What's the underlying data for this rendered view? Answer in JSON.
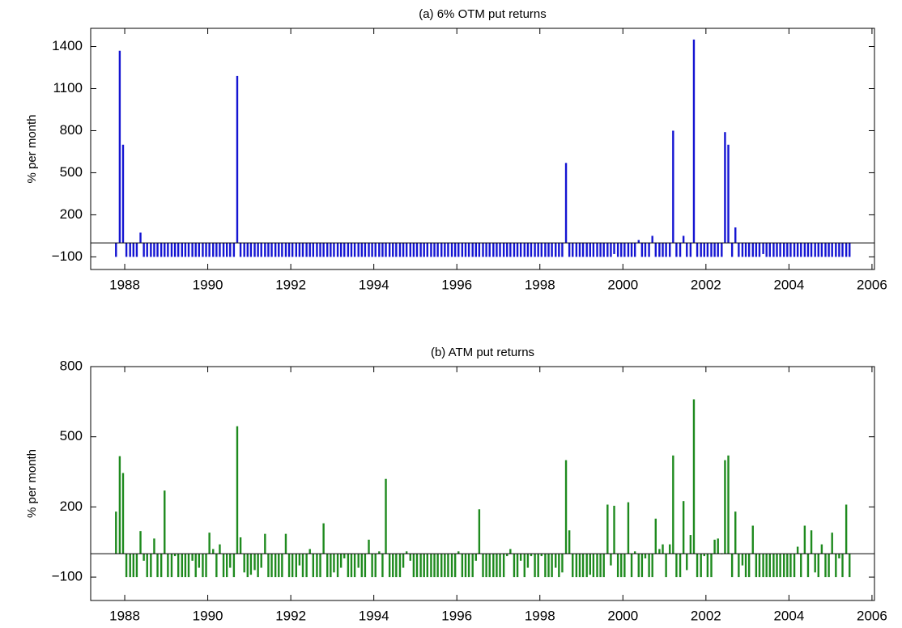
{
  "chart_data": [
    {
      "type": "bar",
      "title": "(a) 6% OTM put returns",
      "y_label": "% per month",
      "color": "#1414d2",
      "x": [
        1987.79,
        1987.88,
        1987.96,
        1988.04,
        1988.13,
        1988.21,
        1988.29,
        1988.38,
        1988.46,
        1988.54,
        1988.63,
        1988.71,
        1988.79,
        1988.88,
        1988.96,
        1989.04,
        1989.13,
        1989.21,
        1989.29,
        1989.38,
        1989.46,
        1989.54,
        1989.63,
        1989.71,
        1989.79,
        1989.88,
        1989.96,
        1990.04,
        1990.13,
        1990.21,
        1990.29,
        1990.38,
        1990.46,
        1990.54,
        1990.63,
        1990.71,
        1990.79,
        1990.88,
        1990.96,
        1991.04,
        1991.13,
        1991.21,
        1991.29,
        1991.38,
        1991.46,
        1991.54,
        1991.63,
        1991.71,
        1991.79,
        1991.88,
        1991.96,
        1992.04,
        1992.13,
        1992.21,
        1992.29,
        1992.38,
        1992.46,
        1992.54,
        1992.63,
        1992.71,
        1992.79,
        1992.88,
        1992.96,
        1993.04,
        1993.13,
        1993.21,
        1993.29,
        1993.38,
        1993.46,
        1993.54,
        1993.63,
        1993.71,
        1993.79,
        1993.88,
        1993.96,
        1994.04,
        1994.13,
        1994.21,
        1994.29,
        1994.38,
        1994.46,
        1994.54,
        1994.63,
        1994.71,
        1994.79,
        1994.88,
        1994.96,
        1995.04,
        1995.13,
        1995.21,
        1995.29,
        1995.38,
        1995.46,
        1995.54,
        1995.63,
        1995.71,
        1995.79,
        1995.88,
        1995.96,
        1996.04,
        1996.13,
        1996.21,
        1996.29,
        1996.38,
        1996.46,
        1996.54,
        1996.63,
        1996.71,
        1996.79,
        1996.88,
        1996.96,
        1997.04,
        1997.13,
        1997.21,
        1997.29,
        1997.38,
        1997.46,
        1997.54,
        1997.63,
        1997.71,
        1997.79,
        1997.88,
        1997.96,
        1998.04,
        1998.13,
        1998.21,
        1998.29,
        1998.38,
        1998.46,
        1998.54,
        1998.63,
        1998.71,
        1998.79,
        1998.88,
        1998.96,
        1999.04,
        1999.13,
        1999.21,
        1999.29,
        1999.38,
        1999.46,
        1999.54,
        1999.63,
        1999.71,
        1999.79,
        1999.88,
        1999.96,
        2000.04,
        2000.13,
        2000.21,
        2000.29,
        2000.38,
        2000.46,
        2000.54,
        2000.63,
        2000.71,
        2000.79,
        2000.88,
        2000.96,
        2001.04,
        2001.13,
        2001.21,
        2001.29,
        2001.38,
        2001.46,
        2001.54,
        2001.63,
        2001.71,
        2001.79,
        2001.88,
        2001.96,
        2002.04,
        2002.13,
        2002.21,
        2002.29,
        2002.38,
        2002.46,
        2002.54,
        2002.63,
        2002.71,
        2002.79,
        2002.88,
        2002.96,
        2003.04,
        2003.13,
        2003.21,
        2003.29,
        2003.38,
        2003.46,
        2003.54,
        2003.63,
        2003.71,
        2003.79,
        2003.88,
        2003.96,
        2004.04,
        2004.13,
        2004.21,
        2004.29,
        2004.38,
        2004.46,
        2004.54,
        2004.63,
        2004.71,
        2004.79,
        2004.88,
        2004.96,
        2005.04,
        2005.13,
        2005.21,
        2005.29,
        2005.38,
        2005.46
      ],
      "values": [
        -100,
        1370,
        700,
        -100,
        -100,
        -100,
        -100,
        73,
        -100,
        -100,
        -100,
        -100,
        -100,
        -100,
        -100,
        -100,
        -100,
        -100,
        -100,
        -100,
        -100,
        -100,
        -100,
        -100,
        -100,
        -100,
        -100,
        -100,
        -100,
        -100,
        -100,
        -100,
        -100,
        -100,
        -100,
        1190,
        -100,
        -100,
        -100,
        -100,
        -100,
        -100,
        -100,
        -100,
        -100,
        -100,
        -100,
        -100,
        -100,
        -100,
        -100,
        -100,
        -100,
        -100,
        -100,
        -100,
        -100,
        -100,
        -100,
        -100,
        -100,
        -100,
        -100,
        -100,
        -100,
        -100,
        -100,
        -100,
        -100,
        -100,
        -100,
        -100,
        -100,
        -100,
        -100,
        -100,
        -100,
        -100,
        -100,
        -100,
        -100,
        -100,
        -100,
        -100,
        -100,
        -100,
        -100,
        -100,
        -100,
        -100,
        -100,
        -100,
        -100,
        -100,
        -100,
        -100,
        -100,
        -100,
        -100,
        -100,
        -100,
        -100,
        -100,
        -100,
        -100,
        -100,
        -100,
        -100,
        -100,
        -100,
        -100,
        -100,
        -100,
        -100,
        -100,
        -100,
        -100,
        -100,
        -100,
        -100,
        -100,
        -100,
        -100,
        -100,
        -100,
        -100,
        -100,
        -100,
        -100,
        -100,
        570,
        -100,
        -100,
        -100,
        -100,
        -100,
        -100,
        -100,
        -100,
        -100,
        -100,
        -100,
        -100,
        -100,
        -80,
        -100,
        -100,
        -100,
        -100,
        -100,
        -100,
        20,
        -100,
        -100,
        -100,
        50,
        -100,
        -100,
        -100,
        -100,
        -100,
        800,
        -100,
        -100,
        50,
        -100,
        -100,
        1450,
        -100,
        -100,
        -100,
        -100,
        -100,
        -100,
        -100,
        -100,
        790,
        700,
        -100,
        110,
        -100,
        -100,
        -100,
        -100,
        -100,
        -100,
        -100,
        -80,
        -100,
        -100,
        -100,
        -100,
        -100,
        -100,
        -100,
        -100,
        -100,
        -100,
        -100,
        -100,
        -100,
        -100,
        -100,
        -100,
        -100,
        -100,
        -100,
        -100,
        -100,
        -100,
        -100,
        -100,
        -100
      ],
      "xlim": [
        1987.18,
        2006.06
      ],
      "xticks": [
        1988,
        1990,
        1992,
        1994,
        1996,
        1998,
        2000,
        2002,
        2004,
        2006
      ],
      "ylim": [
        -190,
        1530
      ],
      "yticks": [
        {
          "value": -100,
          "label": "−100"
        },
        200,
        500,
        800,
        1100,
        1400
      ]
    },
    {
      "type": "bar",
      "title": "(b) ATM put returns",
      "y_label": "% per month",
      "color": "#1e8a1e",
      "x": [
        1987.79,
        1987.88,
        1987.96,
        1988.04,
        1988.13,
        1988.21,
        1988.29,
        1988.38,
        1988.46,
        1988.54,
        1988.63,
        1988.71,
        1988.79,
        1988.88,
        1988.96,
        1989.04,
        1989.13,
        1989.21,
        1989.29,
        1989.38,
        1989.46,
        1989.54,
        1989.63,
        1989.71,
        1989.79,
        1989.88,
        1989.96,
        1990.04,
        1990.13,
        1990.21,
        1990.29,
        1990.38,
        1990.46,
        1990.54,
        1990.63,
        1990.71,
        1990.79,
        1990.88,
        1990.96,
        1991.04,
        1991.13,
        1991.21,
        1991.29,
        1991.38,
        1991.46,
        1991.54,
        1991.63,
        1991.71,
        1991.79,
        1991.88,
        1991.96,
        1992.04,
        1992.13,
        1992.21,
        1992.29,
        1992.38,
        1992.46,
        1992.54,
        1992.63,
        1992.71,
        1992.79,
        1992.88,
        1992.96,
        1993.04,
        1993.13,
        1993.21,
        1993.29,
        1993.38,
        1993.46,
        1993.54,
        1993.63,
        1993.71,
        1993.79,
        1993.88,
        1993.96,
        1994.04,
        1994.13,
        1994.21,
        1994.29,
        1994.38,
        1994.46,
        1994.54,
        1994.63,
        1994.71,
        1994.79,
        1994.88,
        1994.96,
        1995.04,
        1995.13,
        1995.21,
        1995.29,
        1995.38,
        1995.46,
        1995.54,
        1995.63,
        1995.71,
        1995.79,
        1995.88,
        1995.96,
        1996.04,
        1996.13,
        1996.21,
        1996.29,
        1996.38,
        1996.46,
        1996.54,
        1996.63,
        1996.71,
        1996.79,
        1996.88,
        1996.96,
        1997.04,
        1997.13,
        1997.21,
        1997.29,
        1997.38,
        1997.46,
        1997.54,
        1997.63,
        1997.71,
        1997.79,
        1997.88,
        1997.96,
        1998.04,
        1998.13,
        1998.21,
        1998.29,
        1998.38,
        1998.46,
        1998.54,
        1998.63,
        1998.71,
        1998.79,
        1998.88,
        1998.96,
        1999.04,
        1999.13,
        1999.21,
        1999.29,
        1999.38,
        1999.46,
        1999.54,
        1999.63,
        1999.71,
        1999.79,
        1999.88,
        1999.96,
        2000.04,
        2000.13,
        2000.21,
        2000.29,
        2000.38,
        2000.46,
        2000.54,
        2000.63,
        2000.71,
        2000.79,
        2000.88,
        2000.96,
        2001.04,
        2001.13,
        2001.21,
        2001.29,
        2001.38,
        2001.46,
        2001.54,
        2001.63,
        2001.71,
        2001.79,
        2001.88,
        2001.96,
        2002.04,
        2002.13,
        2002.21,
        2002.29,
        2002.38,
        2002.46,
        2002.54,
        2002.63,
        2002.71,
        2002.79,
        2002.88,
        2002.96,
        2003.04,
        2003.13,
        2003.21,
        2003.29,
        2003.38,
        2003.46,
        2003.54,
        2003.63,
        2003.71,
        2003.79,
        2003.88,
        2003.96,
        2004.04,
        2004.13,
        2004.21,
        2004.29,
        2004.38,
        2004.46,
        2004.54,
        2004.63,
        2004.71,
        2004.79,
        2004.88,
        2004.96,
        2005.04,
        2005.13,
        2005.21,
        2005.29,
        2005.38,
        2005.46
      ],
      "values": [
        180,
        417,
        345,
        -100,
        -100,
        -100,
        -100,
        97,
        -30,
        -100,
        -100,
        65,
        -100,
        -100,
        270,
        -100,
        -100,
        -10,
        -100,
        -100,
        -100,
        -100,
        -30,
        -100,
        -60,
        -100,
        -100,
        90,
        20,
        -100,
        40,
        -100,
        -100,
        -60,
        -100,
        545,
        70,
        -80,
        -100,
        -90,
        -70,
        -100,
        -60,
        85,
        -100,
        -100,
        -100,
        -100,
        -100,
        85,
        -100,
        -100,
        -100,
        -50,
        -100,
        -100,
        20,
        -100,
        -100,
        -100,
        130,
        -100,
        -100,
        -80,
        -100,
        -60,
        -20,
        -100,
        -100,
        -100,
        -60,
        -100,
        -100,
        60,
        -100,
        -100,
        10,
        -100,
        320,
        -100,
        -100,
        -100,
        -100,
        -60,
        10,
        -30,
        -100,
        -100,
        -100,
        -100,
        -100,
        -100,
        -100,
        -100,
        -100,
        -100,
        -100,
        -100,
        -100,
        10,
        -100,
        -100,
        -100,
        -100,
        -30,
        190,
        -100,
        -100,
        -100,
        -100,
        -100,
        -100,
        -100,
        -10,
        20,
        -100,
        -100,
        -30,
        -100,
        -60,
        -10,
        -100,
        -100,
        -10,
        -100,
        -100,
        -100,
        -60,
        -100,
        -80,
        400,
        100,
        -100,
        -100,
        -100,
        -100,
        -100,
        -90,
        -100,
        -100,
        -100,
        -100,
        210,
        -50,
        205,
        -100,
        -100,
        -100,
        220,
        -100,
        10,
        -100,
        -100,
        -20,
        -100,
        -100,
        150,
        20,
        40,
        -100,
        40,
        420,
        -100,
        -100,
        225,
        -70,
        80,
        660,
        -100,
        -100,
        -10,
        -100,
        -100,
        60,
        65,
        0,
        400,
        420,
        -100,
        180,
        -100,
        -50,
        -100,
        -100,
        120,
        -100,
        -100,
        -100,
        -100,
        -100,
        -100,
        -100,
        -100,
        -100,
        -100,
        -100,
        -100,
        30,
        -100,
        120,
        -100,
        100,
        -80,
        -100,
        40,
        -100,
        -100,
        90,
        -100,
        -20,
        -100,
        210,
        -100
      ],
      "xlim": [
        1987.18,
        2006.06
      ],
      "xticks": [
        1988,
        1990,
        1992,
        1994,
        1996,
        1998,
        2000,
        2002,
        2004,
        2006
      ],
      "ylim": [
        -200,
        800
      ],
      "yticks": [
        {
          "value": -100,
          "label": "−100"
        },
        200,
        500,
        800
      ]
    }
  ]
}
